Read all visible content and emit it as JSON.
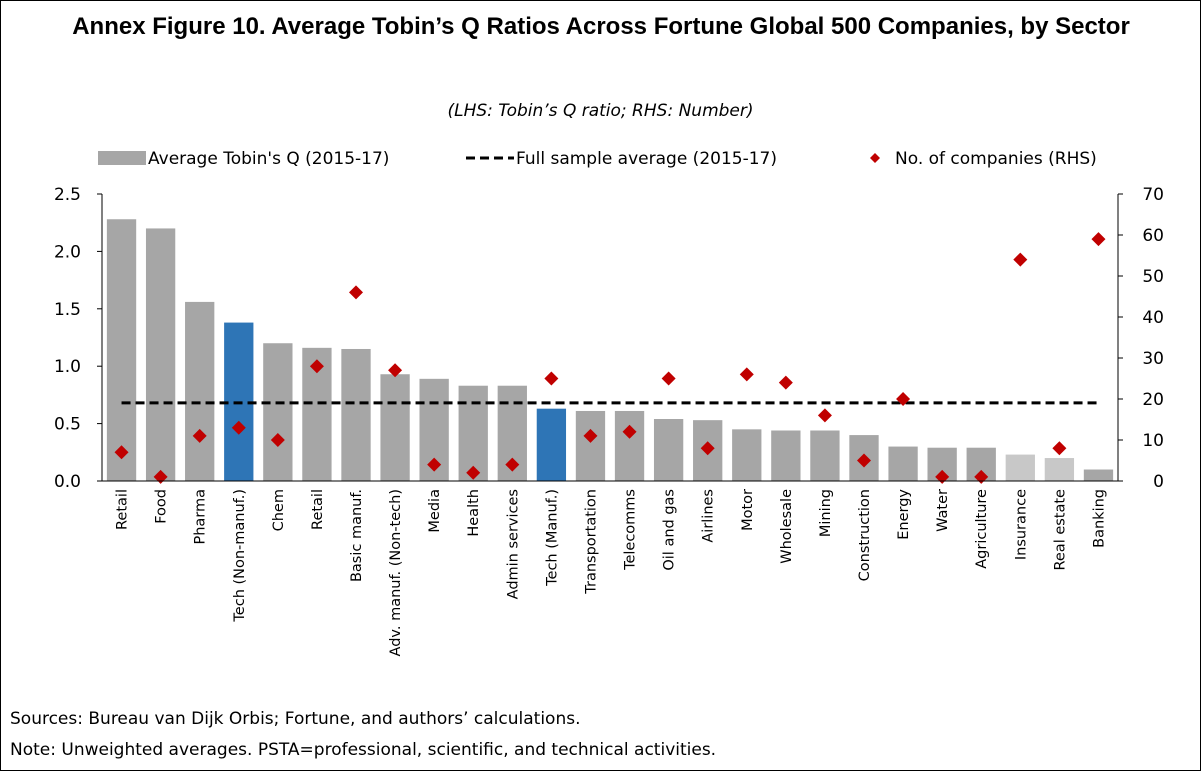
{
  "chart_data": {
    "type": "bar",
    "title": "Annex Figure 10. Average Tobin’s Q Ratios Across Fortune Global 500 Companies, by Sector",
    "subtitle": "(LHS: Tobin’s Q ratio; RHS: Number)",
    "categories": [
      "Retail",
      "Food",
      "Pharma",
      "Tech (Non-manuf.)",
      "Chem",
      "Retail",
      "Basic manuf.",
      "Adv. manuf. (Non-tech)",
      "Media",
      "Health",
      "Admin services",
      "Tech (Manuf.)",
      "Transportation",
      "Telecomms",
      "Oil and gas",
      "Airlines",
      "Motor",
      "Wholesale",
      "Mining",
      "Construction",
      "Energy",
      "Water",
      "Agriculture",
      "Insurance",
      "Real estate",
      "Banking"
    ],
    "series": [
      {
        "name": "Average Tobin's Q (2015-17)",
        "type": "bar",
        "color": "#a6a6a6",
        "colors": [
          "#a6a6a6",
          "#a6a6a6",
          "#a6a6a6",
          "#2e75b6",
          "#a6a6a6",
          "#a6a6a6",
          "#a6a6a6",
          "#a6a6a6",
          "#a6a6a6",
          "#a6a6a6",
          "#a6a6a6",
          "#2e75b6",
          "#a6a6a6",
          "#a6a6a6",
          "#a6a6a6",
          "#a6a6a6",
          "#a6a6a6",
          "#a6a6a6",
          "#a6a6a6",
          "#a6a6a6",
          "#a6a6a6",
          "#a6a6a6",
          "#a6a6a6",
          "#c8c8c8",
          "#c8c8c8",
          "#a6a6a6"
        ],
        "values": [
          2.28,
          2.2,
          1.56,
          1.38,
          1.2,
          1.16,
          1.15,
          0.93,
          0.89,
          0.83,
          0.83,
          0.63,
          0.61,
          0.61,
          0.54,
          0.53,
          0.45,
          0.44,
          0.44,
          0.4,
          0.3,
          0.29,
          0.29,
          0.23,
          0.2,
          0.1
        ]
      },
      {
        "name": "Full sample average (2015-17)",
        "type": "line",
        "color": "#000000",
        "value": 0.68
      },
      {
        "name": "No. of companies (RHS)",
        "type": "scatter",
        "color": "#c00000",
        "axis": "y2",
        "values": [
          7,
          1,
          11,
          13,
          10,
          28,
          46,
          27,
          4,
          2,
          4,
          25,
          11,
          12,
          25,
          8,
          26,
          24,
          16,
          5,
          20,
          1,
          1,
          54,
          8,
          59
        ]
      }
    ],
    "ylim": [
      0,
      2.5
    ],
    "yticks": [
      {
        "value": 0,
        "label": "0.0"
      },
      {
        "value": 0.5,
        "label": "0.5"
      },
      {
        "value": 1,
        "label": "1.0"
      },
      {
        "value": 1.5,
        "label": "1.5"
      },
      {
        "value": 2,
        "label": "2.0"
      },
      2.5
    ],
    "y2lim": [
      0,
      70
    ],
    "y2ticks": [
      0,
      10,
      20,
      30,
      40,
      50,
      60,
      70
    ],
    "legend": "top",
    "sources": "Sources: Bureau van Dijk Orbis; Fortune, and authors’ calculations.",
    "note": "Note: Unweighted averages. PSTA=professional, scientific, and technical activities."
  }
}
